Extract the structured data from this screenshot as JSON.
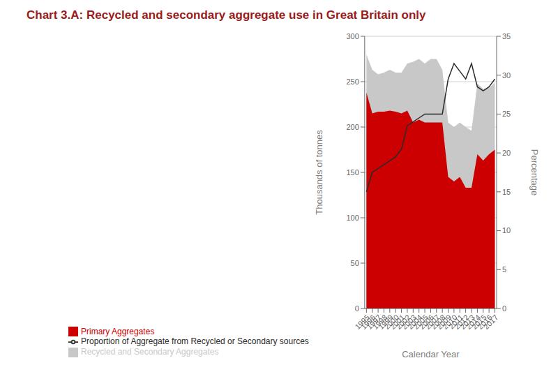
{
  "chart_data": {
    "type": "area",
    "title": "Chart 3.A: Recycled and secondary aggregate use in Great Britain only",
    "xlabel": "Calendar Year",
    "ylabel": "Thousands of tonnes",
    "y2label": "Percentage",
    "x": [
      1995,
      1996,
      1997,
      1998,
      1999,
      2000,
      2001,
      2002,
      2003,
      2004,
      2005,
      2006,
      2007,
      2008,
      2009,
      2010,
      2011,
      2012,
      2013,
      2014,
      2015,
      2016,
      2017
    ],
    "series": [
      {
        "name": "Recycled and Secondary Aggregates",
        "type": "area",
        "color": "#c8c8c8",
        "values": [
          280,
          263,
          258,
          260,
          263,
          260,
          260,
          270,
          272,
          275,
          270,
          275,
          275,
          263,
          205,
          200,
          205,
          200,
          196,
          248,
          242,
          243,
          249
        ]
      },
      {
        "name": "Primary Aggregates",
        "type": "area",
        "color": "#cc0000",
        "values": [
          238,
          215,
          217,
          217,
          218,
          217,
          215,
          218,
          205,
          208,
          205,
          205,
          205,
          205,
          145,
          140,
          145,
          133,
          133,
          170,
          163,
          170,
          175
        ]
      },
      {
        "name": "Proportion of Aggregate from Recycled or Secondary sources",
        "type": "line",
        "color": "#2b2b2b",
        "axis": "y2",
        "values": [
          15.0,
          17.5,
          18.0,
          18.5,
          19.0,
          19.5,
          20.5,
          23.5,
          24.0,
          24.5,
          25.0,
          25.0,
          25.0,
          25.0,
          29.5,
          31.5,
          30.5,
          29.5,
          31.5,
          28.5,
          28.0,
          28.5,
          29.5
        ]
      }
    ],
    "xlim": [
      1994.7,
      2017.3
    ],
    "xticks": [
      1995,
      1996,
      1997,
      1998,
      1999,
      2000,
      2001,
      2002,
      2003,
      2004,
      2005,
      2006,
      2007,
      2008,
      2009,
      2010,
      2011,
      2012,
      2013,
      2014,
      2015,
      2016,
      2017
    ],
    "ylim": [
      0,
      300
    ],
    "yticks": [
      0,
      50,
      100,
      150,
      200,
      250,
      300
    ],
    "y2lim": [
      0,
      35
    ],
    "y2ticks": [
      0,
      5,
      10,
      15,
      20,
      25,
      30,
      35
    ],
    "grid": true,
    "legend": "lower left"
  }
}
